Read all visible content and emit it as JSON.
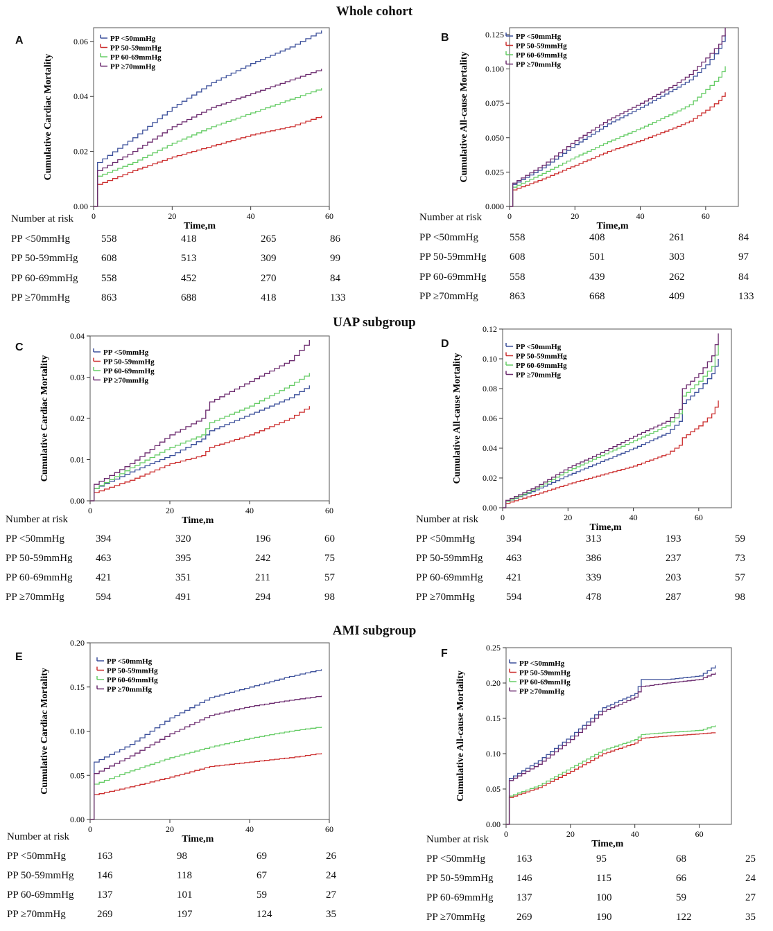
{
  "colors": {
    "pp_lt50": "#3b4f9a",
    "pp_50_59": "#cc2f2f",
    "pp_60_69": "#66cc66",
    "pp_ge70": "#6b2a6e"
  },
  "section_titles": {
    "whole": "Whole cohort",
    "uap": "UAP subgroup",
    "ami": "AMI subgroup"
  },
  "risk_header": "Number at risk",
  "risk_labels": [
    "PP <50mmHg",
    "PP 50-59mmHg",
    "PP 60-69mmHg",
    "PP ≥70mmHg"
  ],
  "chart_data": [
    {
      "letter": "A",
      "type": "line",
      "title": "",
      "ylabel": "Cumulative Cardiac Mortality",
      "xlabel": "Time,m",
      "xlim": [
        0,
        60
      ],
      "ylim": [
        0,
        0.065
      ],
      "xticks": [
        0,
        20,
        40,
        60
      ],
      "yticks": [
        0,
        0.02,
        0.04,
        0.06
      ],
      "ytick_labels": [
        "0.00",
        "0.02",
        "0.04",
        "0.06"
      ],
      "legend": [
        "PP <50mmHg",
        "PP 50-59mmHg",
        "PP 60-69mmHg",
        "PP ≥70mmHg"
      ],
      "series": [
        {
          "name": "PP <50mmHg",
          "x": [
            0,
            1,
            10,
            20,
            30,
            40,
            50,
            58
          ],
          "y": [
            0,
            0.016,
            0.025,
            0.036,
            0.045,
            0.052,
            0.058,
            0.064
          ]
        },
        {
          "name": "PP 50-59mmHg",
          "x": [
            0,
            1,
            10,
            20,
            30,
            40,
            50,
            58
          ],
          "y": [
            0,
            0.008,
            0.013,
            0.018,
            0.022,
            0.026,
            0.029,
            0.033
          ]
        },
        {
          "name": "PP 60-69mmHg",
          "x": [
            0,
            1,
            10,
            20,
            30,
            40,
            50,
            58
          ],
          "y": [
            0,
            0.011,
            0.016,
            0.023,
            0.029,
            0.034,
            0.039,
            0.043
          ]
        },
        {
          "name": "PP ≥70mmHg",
          "x": [
            0,
            1,
            10,
            20,
            30,
            40,
            50,
            58
          ],
          "y": [
            0,
            0.013,
            0.02,
            0.029,
            0.036,
            0.041,
            0.046,
            0.05
          ]
        }
      ],
      "risk": [
        [
          558,
          418,
          265,
          86
        ],
        [
          608,
          513,
          309,
          99
        ],
        [
          558,
          452,
          270,
          84
        ],
        [
          863,
          688,
          418,
          133
        ]
      ]
    },
    {
      "letter": "B",
      "type": "line",
      "title": "",
      "ylabel": "Cumulative All-cause Mortality",
      "xlabel": "Time,m",
      "xlim": [
        0,
        70
      ],
      "ylim": [
        0,
        0.13
      ],
      "xticks": [
        0,
        20,
        40,
        60
      ],
      "yticks": [
        0,
        0.025,
        0.05,
        0.075,
        0.1,
        0.125
      ],
      "ytick_labels": [
        "0.000",
        "0.025",
        "0.050",
        "0.075",
        "0.100",
        "0.125"
      ],
      "legend": [
        "PP <50mmHg",
        "PP 50-59mmHg",
        "PP 60-69mmHg",
        "PP ≥70mmHg"
      ],
      "series": [
        {
          "name": "PP <50mmHg",
          "x": [
            0,
            1,
            10,
            20,
            30,
            40,
            50,
            55,
            60,
            64,
            66
          ],
          "y": [
            0,
            0.016,
            0.028,
            0.045,
            0.06,
            0.072,
            0.085,
            0.092,
            0.103,
            0.115,
            0.125
          ]
        },
        {
          "name": "PP 50-59mmHg",
          "x": [
            0,
            1,
            10,
            20,
            30,
            40,
            50,
            55,
            60,
            64,
            66
          ],
          "y": [
            0,
            0.012,
            0.02,
            0.03,
            0.04,
            0.048,
            0.057,
            0.062,
            0.07,
            0.077,
            0.083
          ]
        },
        {
          "name": "PP 60-69mmHg",
          "x": [
            0,
            1,
            10,
            20,
            30,
            40,
            50,
            55,
            60,
            64,
            66
          ],
          "y": [
            0,
            0.014,
            0.024,
            0.036,
            0.047,
            0.057,
            0.068,
            0.074,
            0.085,
            0.094,
            0.102
          ]
        },
        {
          "name": "PP ≥70mmHg",
          "x": [
            0,
            1,
            10,
            20,
            30,
            40,
            50,
            55,
            60,
            64,
            66
          ],
          "y": [
            0,
            0.017,
            0.03,
            0.048,
            0.063,
            0.075,
            0.088,
            0.096,
            0.108,
            0.118,
            0.13
          ]
        }
      ],
      "risk": [
        [
          558,
          408,
          261,
          84
        ],
        [
          608,
          501,
          303,
          97
        ],
        [
          558,
          439,
          262,
          84
        ],
        [
          863,
          668,
          409,
          133
        ]
      ]
    },
    {
      "letter": "C",
      "type": "line",
      "title": "",
      "ylabel": "Cumulative Cardiac Mortality",
      "xlabel": "Time,m",
      "xlim": [
        0,
        60
      ],
      "ylim": [
        0,
        0.04
      ],
      "xticks": [
        0,
        20,
        40,
        60
      ],
      "yticks": [
        0,
        0.01,
        0.02,
        0.03,
        0.04
      ],
      "ytick_labels": [
        "0.00",
        "0.01",
        "0.02",
        "0.03",
        "0.04"
      ],
      "legend": [
        "PP <50mmHg",
        "PP 50-59mmHg",
        "PP 60-69mmHg",
        "PP ≥70mmHg"
      ],
      "series": [
        {
          "name": "PP <50mmHg",
          "x": [
            0,
            1,
            10,
            20,
            28,
            30,
            40,
            50,
            55
          ],
          "y": [
            0,
            0.003,
            0.007,
            0.011,
            0.015,
            0.017,
            0.021,
            0.025,
            0.028
          ]
        },
        {
          "name": "PP 50-59mmHg",
          "x": [
            0,
            1,
            10,
            20,
            28,
            30,
            40,
            50,
            55
          ],
          "y": [
            0,
            0.002,
            0.005,
            0.009,
            0.011,
            0.013,
            0.016,
            0.02,
            0.023
          ]
        },
        {
          "name": "PP 60-69mmHg",
          "x": [
            0,
            1,
            10,
            20,
            28,
            30,
            40,
            50,
            55
          ],
          "y": [
            0,
            0.003,
            0.008,
            0.013,
            0.016,
            0.019,
            0.023,
            0.028,
            0.031
          ]
        },
        {
          "name": "PP ≥70mmHg",
          "x": [
            0,
            1,
            10,
            20,
            28,
            30,
            40,
            50,
            55
          ],
          "y": [
            0,
            0.004,
            0.009,
            0.016,
            0.02,
            0.024,
            0.029,
            0.034,
            0.039
          ]
        }
      ],
      "risk": [
        [
          394,
          320,
          196,
          60
        ],
        [
          463,
          395,
          242,
          75
        ],
        [
          421,
          351,
          211,
          57
        ],
        [
          594,
          491,
          294,
          98
        ]
      ]
    },
    {
      "letter": "D",
      "type": "line",
      "title": "",
      "ylabel": "Cumulative All-cause Mortality",
      "xlabel": "Time,m",
      "xlim": [
        0,
        70
      ],
      "ylim": [
        0,
        0.12
      ],
      "xticks": [
        0,
        20,
        40,
        60
      ],
      "yticks": [
        0,
        0.02,
        0.04,
        0.06,
        0.08,
        0.1,
        0.12
      ],
      "ytick_labels": [
        "0.00",
        "0.02",
        "0.04",
        "0.06",
        "0.08",
        "0.10",
        "0.12"
      ],
      "legend": [
        "PP <50mmHg",
        "PP 50-59mmHg",
        "PP 60-69mmHg",
        "PP ≥70mmHg"
      ],
      "series": [
        {
          "name": "PP <50mmHg",
          "x": [
            0,
            1,
            10,
            20,
            30,
            40,
            50,
            54,
            55,
            60,
            64,
            66
          ],
          "y": [
            0,
            0.004,
            0.012,
            0.022,
            0.031,
            0.04,
            0.05,
            0.058,
            0.07,
            0.08,
            0.09,
            0.1
          ]
        },
        {
          "name": "PP 50-59mmHg",
          "x": [
            0,
            1,
            10,
            20,
            30,
            40,
            50,
            54,
            55,
            60,
            64,
            66
          ],
          "y": [
            0,
            0.003,
            0.009,
            0.016,
            0.022,
            0.028,
            0.036,
            0.042,
            0.047,
            0.055,
            0.063,
            0.072
          ]
        },
        {
          "name": "PP 60-69mmHg",
          "x": [
            0,
            1,
            10,
            20,
            30,
            40,
            50,
            54,
            55,
            60,
            64,
            66
          ],
          "y": [
            0,
            0.004,
            0.013,
            0.025,
            0.035,
            0.045,
            0.055,
            0.063,
            0.075,
            0.085,
            0.095,
            0.11
          ]
        },
        {
          "name": "PP ≥70mmHg",
          "x": [
            0,
            1,
            10,
            20,
            30,
            40,
            50,
            54,
            55,
            60,
            64,
            66
          ],
          "y": [
            0,
            0.005,
            0.014,
            0.027,
            0.037,
            0.048,
            0.058,
            0.066,
            0.08,
            0.09,
            0.102,
            0.117
          ]
        }
      ],
      "risk": [
        [
          394,
          313,
          193,
          59
        ],
        [
          463,
          386,
          237,
          73
        ],
        [
          421,
          339,
          203,
          57
        ],
        [
          594,
          478,
          287,
          98
        ]
      ]
    },
    {
      "letter": "E",
      "type": "line",
      "title": "",
      "ylabel": "Cumulative Cardiac Mortality",
      "xlabel": "Time,m",
      "xlim": [
        0,
        60
      ],
      "ylim": [
        0,
        0.2
      ],
      "xticks": [
        0,
        20,
        40,
        60
      ],
      "yticks": [
        0,
        0.05,
        0.1,
        0.15,
        0.2
      ],
      "ytick_labels": [
        "0.00",
        "0.05",
        "0.10",
        "0.15",
        "0.20"
      ],
      "legend": [
        "PP <50mmHg",
        "PP 50-59mmHg",
        "PP 60-69mmHg",
        "PP ≥70mmHg"
      ],
      "series": [
        {
          "name": "PP <50mmHg",
          "x": [
            0,
            1,
            10,
            20,
            30,
            40,
            50,
            58
          ],
          "y": [
            0,
            0.065,
            0.085,
            0.115,
            0.138,
            0.15,
            0.162,
            0.17
          ]
        },
        {
          "name": "PP 50-59mmHg",
          "x": [
            0,
            1,
            10,
            20,
            30,
            40,
            50,
            58
          ],
          "y": [
            0,
            0.028,
            0.037,
            0.048,
            0.06,
            0.065,
            0.07,
            0.075
          ]
        },
        {
          "name": "PP 60-69mmHg",
          "x": [
            0,
            1,
            10,
            20,
            30,
            40,
            50,
            58
          ],
          "y": [
            0,
            0.04,
            0.055,
            0.07,
            0.082,
            0.092,
            0.1,
            0.105
          ]
        },
        {
          "name": "PP ≥70mmHg",
          "x": [
            0,
            1,
            10,
            20,
            30,
            40,
            50,
            58
          ],
          "y": [
            0,
            0.052,
            0.072,
            0.097,
            0.118,
            0.128,
            0.135,
            0.14
          ]
        }
      ],
      "risk": [
        [
          163,
          98,
          69,
          26
        ],
        [
          146,
          118,
          67,
          24
        ],
        [
          137,
          101,
          59,
          27
        ],
        [
          269,
          197,
          124,
          35
        ]
      ]
    },
    {
      "letter": "F",
      "type": "line",
      "title": "",
      "ylabel": "Cumulative All-cause Mortality",
      "xlabel": "Time,m",
      "xlim": [
        0,
        70
      ],
      "ylim": [
        0,
        0.25
      ],
      "xticks": [
        0,
        20,
        40,
        60
      ],
      "yticks": [
        0,
        0.05,
        0.1,
        0.15,
        0.2,
        0.25
      ],
      "ytick_labels": [
        "0.00",
        "0.05",
        "0.10",
        "0.15",
        "0.20",
        "0.25"
      ],
      "legend": [
        "PP <50mmHg",
        "PP 50-59mmHg",
        "PP 60-69mmHg",
        "PP ≥70mmHg"
      ],
      "series": [
        {
          "name": "PP <50mmHg",
          "x": [
            0,
            1,
            10,
            20,
            30,
            40,
            42,
            50,
            60,
            65
          ],
          "y": [
            0,
            0.065,
            0.09,
            0.125,
            0.165,
            0.185,
            0.205,
            0.205,
            0.21,
            0.225
          ]
        },
        {
          "name": "PP 50-59mmHg",
          "x": [
            0,
            1,
            10,
            20,
            30,
            40,
            42,
            50,
            60,
            65
          ],
          "y": [
            0,
            0.038,
            0.052,
            0.075,
            0.1,
            0.115,
            0.122,
            0.125,
            0.128,
            0.13
          ]
        },
        {
          "name": "PP 60-69mmHg",
          "x": [
            0,
            1,
            10,
            20,
            30,
            40,
            42,
            50,
            60,
            65
          ],
          "y": [
            0,
            0.04,
            0.055,
            0.08,
            0.105,
            0.12,
            0.127,
            0.13,
            0.133,
            0.14
          ]
        },
        {
          "name": "PP ≥70mmHg",
          "x": [
            0,
            1,
            10,
            20,
            30,
            40,
            42,
            50,
            60,
            65
          ],
          "y": [
            0,
            0.062,
            0.085,
            0.12,
            0.16,
            0.18,
            0.195,
            0.2,
            0.205,
            0.215
          ]
        }
      ],
      "risk": [
        [
          163,
          95,
          68,
          25
        ],
        [
          146,
          115,
          66,
          24
        ],
        [
          137,
          100,
          59,
          27
        ],
        [
          269,
          190,
          122,
          35
        ]
      ]
    }
  ]
}
